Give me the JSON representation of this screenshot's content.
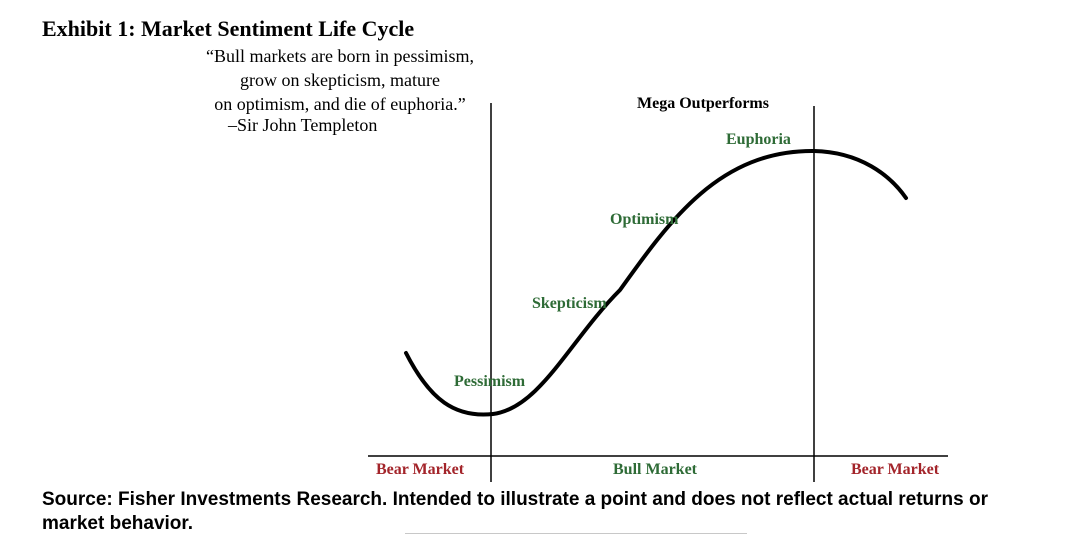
{
  "title": "Exhibit 1: Market Sentiment Life Cycle",
  "quote": {
    "lines": [
      "“Bull markets are born in pessimism,",
      "grow on skepticism, mature",
      "on optimism, and die of euphoria.”"
    ],
    "attribution": "–Sir John Templeton"
  },
  "diagram": {
    "top_label": "Mega Outperforms",
    "stages": [
      "Pessimism",
      "Skepticism",
      "Optimism",
      "Euphoria"
    ],
    "phases": [
      "Bear Market",
      "Bull Market",
      "Bear Market"
    ],
    "colors": {
      "stage": "#2e6b36",
      "phase_bear": "#a3242a",
      "phase_bull": "#2e6b36",
      "curve": "#000000",
      "lines": "#000000"
    }
  },
  "source": "Source: Fisher Investments Research. Intended to illustrate a point and does not reflect actual returns or market behavior."
}
